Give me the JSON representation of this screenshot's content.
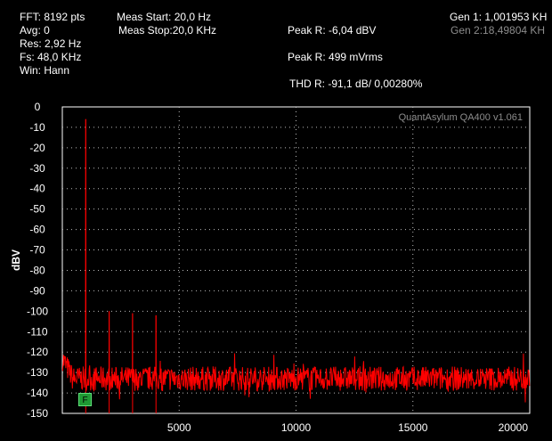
{
  "info": {
    "fft": "FFT: 8192 pts",
    "avg": "Avg: 0",
    "res": "Res: 2,92 Hz",
    "fs": "Fs: 48,0 KHz",
    "win": "Win: Hann",
    "meas_start": "Meas Start: 20,0 Hz",
    "meas_stop": "Meas Stop:20,0 KHz",
    "peak_dbv": "Peak R: -6,04 dBV",
    "peak_mv": "Peak R: 499 mVrms",
    "thd": "THD R: -91,1 dB/ 0,00280%",
    "gen1": "Gen 1: 1,001953 KH",
    "gen2": "Gen 2:18,49804 KH"
  },
  "watermark": "QuantAsylum QA400 v1.061",
  "marker_label": "F",
  "colors": {
    "background": "#000000",
    "trace": "#ff0000",
    "grid": "#bbbbbb",
    "text": "#ffffff"
  },
  "chart_data": {
    "type": "line",
    "ylabel": "dBV",
    "xlabel": "",
    "xlim": [
      0,
      20000
    ],
    "ylim": [
      -150,
      0
    ],
    "x_ticks": [
      5000,
      10000,
      15000,
      20000
    ],
    "y_ticks": [
      0,
      -10,
      -20,
      -30,
      -40,
      -50,
      -60,
      -70,
      -80,
      -90,
      -100,
      -110,
      -120,
      -130,
      -140,
      -150
    ],
    "grid": true,
    "series": [
      {
        "noise_floor_dbv": -133,
        "peaks": [
          {
            "x": 1002,
            "y": -6
          },
          {
            "x": 2004,
            "y": -100
          },
          {
            "x": 3006,
            "y": -101
          },
          {
            "x": 4008,
            "y": -102
          }
        ]
      }
    ]
  }
}
